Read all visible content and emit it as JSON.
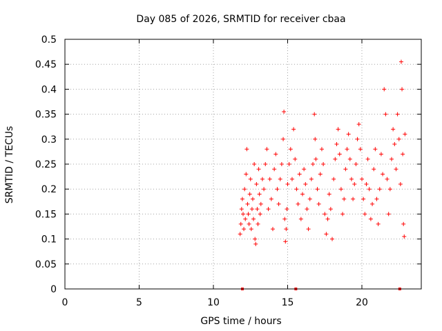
{
  "chart_data": {
    "type": "scatter",
    "title": "Day 085 of 2026, SRMTID for receiver cbaa",
    "xlabel": "GPS time / hours",
    "ylabel": "SRMTID / TECUs",
    "xlim": [
      0,
      24
    ],
    "ylim": [
      0,
      0.5
    ],
    "xticks": [
      0,
      5,
      10,
      15,
      20
    ],
    "yticks": [
      0,
      0.05,
      0.1,
      0.15,
      0.2,
      0.25,
      0.3,
      0.35,
      0.4,
      0.45,
      0.5
    ],
    "xtick_labels": [
      "0",
      "5",
      "10",
      "15",
      "20"
    ],
    "ytick_labels": [
      "0",
      "0.05",
      "0.1",
      "0.15",
      "0.2",
      "0.25",
      "0.3",
      "0.35",
      "0.4",
      "0.45",
      "0.5"
    ],
    "grid": true,
    "marker": "+",
    "color": "#ff0000",
    "x_range_of_points": [
      11.8,
      22.9
    ],
    "zero_markers": [
      11.95,
      15.55,
      22.55
    ],
    "points": [
      [
        11.8,
        0.11
      ],
      [
        11.85,
        0.13
      ],
      [
        11.9,
        0.16
      ],
      [
        11.95,
        0.18
      ],
      [
        12.0,
        0.15
      ],
      [
        12.05,
        0.12
      ],
      [
        12.1,
        0.2
      ],
      [
        12.15,
        0.14
      ],
      [
        12.2,
        0.23
      ],
      [
        12.25,
        0.28
      ],
      [
        12.3,
        0.17
      ],
      [
        12.35,
        0.15
      ],
      [
        12.4,
        0.13
      ],
      [
        12.45,
        0.19
      ],
      [
        12.5,
        0.22
      ],
      [
        12.55,
        0.12
      ],
      [
        12.6,
        0.16
      ],
      [
        12.65,
        0.18
      ],
      [
        12.7,
        0.14
      ],
      [
        12.75,
        0.25
      ],
      [
        12.8,
        0.1
      ],
      [
        12.85,
        0.09
      ],
      [
        12.9,
        0.21
      ],
      [
        12.95,
        0.16
      ],
      [
        13.0,
        0.13
      ],
      [
        13.05,
        0.24
      ],
      [
        13.1,
        0.19
      ],
      [
        13.15,
        0.15
      ],
      [
        13.2,
        0.17
      ],
      [
        13.3,
        0.22
      ],
      [
        13.4,
        0.2
      ],
      [
        13.5,
        0.25
      ],
      [
        13.6,
        0.28
      ],
      [
        13.7,
        0.16
      ],
      [
        13.8,
        0.22
      ],
      [
        13.9,
        0.18
      ],
      [
        14.0,
        0.12
      ],
      [
        14.1,
        0.24
      ],
      [
        14.2,
        0.27
      ],
      [
        14.3,
        0.2
      ],
      [
        14.4,
        0.17
      ],
      [
        14.5,
        0.22
      ],
      [
        14.6,
        0.25
      ],
      [
        14.7,
        0.3
      ],
      [
        14.75,
        0.355
      ],
      [
        14.8,
        0.14
      ],
      [
        14.85,
        0.095
      ],
      [
        14.9,
        0.12
      ],
      [
        14.95,
        0.16
      ],
      [
        15.0,
        0.21
      ],
      [
        15.1,
        0.25
      ],
      [
        15.2,
        0.28
      ],
      [
        15.3,
        0.22
      ],
      [
        15.4,
        0.32
      ],
      [
        15.5,
        0.26
      ],
      [
        15.6,
        0.2
      ],
      [
        15.7,
        0.17
      ],
      [
        15.8,
        0.23
      ],
      [
        15.9,
        0.14
      ],
      [
        16.0,
        0.19
      ],
      [
        16.1,
        0.24
      ],
      [
        16.2,
        0.21
      ],
      [
        16.3,
        0.16
      ],
      [
        16.4,
        0.12
      ],
      [
        16.5,
        0.18
      ],
      [
        16.6,
        0.22
      ],
      [
        16.7,
        0.25
      ],
      [
        16.8,
        0.35
      ],
      [
        16.85,
        0.3
      ],
      [
        16.9,
        0.26
      ],
      [
        17.0,
        0.2
      ],
      [
        17.1,
        0.17
      ],
      [
        17.2,
        0.23
      ],
      [
        17.3,
        0.28
      ],
      [
        17.4,
        0.25
      ],
      [
        17.5,
        0.15
      ],
      [
        17.6,
        0.11
      ],
      [
        17.7,
        0.14
      ],
      [
        17.8,
        0.19
      ],
      [
        17.9,
        0.16
      ],
      [
        18.0,
        0.1
      ],
      [
        18.1,
        0.22
      ],
      [
        18.2,
        0.26
      ],
      [
        18.3,
        0.29
      ],
      [
        18.4,
        0.32
      ],
      [
        18.5,
        0.27
      ],
      [
        18.6,
        0.2
      ],
      [
        18.7,
        0.15
      ],
      [
        18.8,
        0.18
      ],
      [
        18.9,
        0.24
      ],
      [
        19.0,
        0.28
      ],
      [
        19.1,
        0.31
      ],
      [
        19.2,
        0.26
      ],
      [
        19.3,
        0.22
      ],
      [
        19.4,
        0.18
      ],
      [
        19.5,
        0.21
      ],
      [
        19.6,
        0.25
      ],
      [
        19.7,
        0.3
      ],
      [
        19.8,
        0.33
      ],
      [
        19.9,
        0.28
      ],
      [
        20.0,
        0.22
      ],
      [
        20.1,
        0.18
      ],
      [
        20.2,
        0.15
      ],
      [
        20.3,
        0.21
      ],
      [
        20.4,
        0.26
      ],
      [
        20.5,
        0.2
      ],
      [
        20.6,
        0.14
      ],
      [
        20.7,
        0.17
      ],
      [
        20.8,
        0.24
      ],
      [
        20.9,
        0.28
      ],
      [
        21.0,
        0.18
      ],
      [
        21.1,
        0.13
      ],
      [
        21.2,
        0.2
      ],
      [
        21.3,
        0.27
      ],
      [
        21.4,
        0.23
      ],
      [
        21.5,
        0.4
      ],
      [
        21.6,
        0.35
      ],
      [
        21.7,
        0.22
      ],
      [
        21.8,
        0.15
      ],
      [
        21.9,
        0.2
      ],
      [
        22.0,
        0.26
      ],
      [
        22.1,
        0.32
      ],
      [
        22.2,
        0.29
      ],
      [
        22.3,
        0.24
      ],
      [
        22.4,
        0.35
      ],
      [
        22.5,
        0.3
      ],
      [
        22.6,
        0.21
      ],
      [
        22.65,
        0.455
      ],
      [
        22.7,
        0.4
      ],
      [
        22.75,
        0.27
      ],
      [
        22.8,
        0.13
      ],
      [
        22.85,
        0.105
      ],
      [
        22.9,
        0.31
      ]
    ]
  }
}
